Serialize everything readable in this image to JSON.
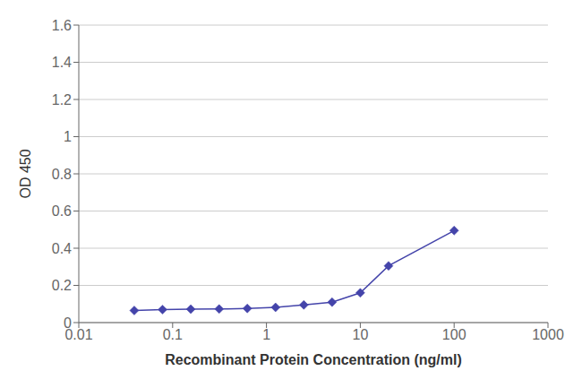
{
  "chart_data": {
    "type": "line",
    "x": [
      0.039,
      0.078,
      0.156,
      0.313,
      0.625,
      1.25,
      2.5,
      5.0,
      10.0,
      20.0,
      100.0
    ],
    "values": [
      0.065,
      0.07,
      0.072,
      0.073,
      0.076,
      0.082,
      0.095,
      0.11,
      0.16,
      0.305,
      0.495
    ],
    "color": "#4444aa",
    "marker": "diamond",
    "xlabel": "Recombinant Protein Concentration (ng/ml)",
    "ylabel": "OD 450",
    "xlim": [
      0.01,
      1000
    ],
    "ylim": [
      0,
      1.6
    ],
    "xticks": [
      0.01,
      0.1,
      1,
      10,
      100,
      1000
    ],
    "yticks": [
      0,
      0.2,
      0.4,
      0.6,
      0.8,
      1.0,
      1.2,
      1.4,
      1.6
    ],
    "log": "x",
    "grid": "y"
  }
}
